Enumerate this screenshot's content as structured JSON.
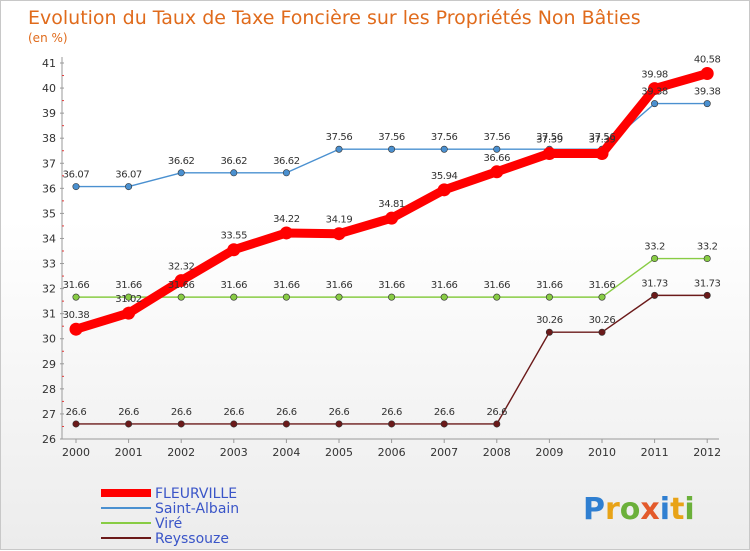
{
  "chart_data": {
    "type": "line",
    "title": "Evolution du Taux de Taxe Foncière sur les Propriétés Non Bâties",
    "subtitle": "(en %)",
    "x": [
      "2000",
      "2001",
      "2002",
      "2003",
      "2004",
      "2005",
      "2006",
      "2007",
      "2008",
      "2009",
      "2010",
      "2011",
      "2012"
    ],
    "ylim": [
      26,
      41
    ],
    "yticks": [
      26,
      27,
      28,
      29,
      30,
      31,
      32,
      33,
      34,
      35,
      36,
      37,
      38,
      39,
      40,
      41
    ],
    "grid": false,
    "legend_position": "bottom-left",
    "series": [
      {
        "name": "FLEURVILLE",
        "color": "#ff0000",
        "values": [
          30.38,
          31.02,
          32.32,
          33.55,
          34.22,
          34.19,
          34.81,
          35.94,
          36.66,
          37.39,
          37.39,
          39.98,
          40.58
        ],
        "labels": [
          "30.38",
          "31.02",
          "32.32",
          "33.55",
          "34.22",
          "34.19",
          "34.81",
          "35.94",
          "36.66",
          "37.39",
          "37.39",
          "39.98",
          "40.58"
        ]
      },
      {
        "name": "Saint-Albain",
        "color": "#4a90d0",
        "values": [
          36.07,
          36.07,
          36.62,
          36.62,
          36.62,
          37.56,
          37.56,
          37.56,
          37.56,
          37.56,
          37.56,
          39.38,
          39.38
        ],
        "labels": [
          "36.07",
          "36.07",
          "36.62",
          "36.62",
          "36.62",
          "37.56",
          "37.56",
          "37.56",
          "37.56",
          "37.56",
          "37.56",
          "39.38",
          "39.38"
        ]
      },
      {
        "name": "Viré",
        "color": "#88cc44",
        "values": [
          31.66,
          31.66,
          31.66,
          31.66,
          31.66,
          31.66,
          31.66,
          31.66,
          31.66,
          31.66,
          31.66,
          33.2,
          33.2
        ],
        "labels": [
          "31.66",
          "31.66",
          "31.66",
          "31.66",
          "31.66",
          "31.66",
          "31.66",
          "31.66",
          "31.66",
          "31.66",
          "31.66",
          "33.2",
          "33.2"
        ]
      },
      {
        "name": "Reyssouze",
        "color": "#6b1a1a",
        "values": [
          26.6,
          26.6,
          26.6,
          26.6,
          26.6,
          26.6,
          26.6,
          26.6,
          26.6,
          30.26,
          30.26,
          31.73,
          31.73
        ],
        "labels": [
          "26.6",
          "26.6",
          "26.6",
          "26.6",
          "26.6",
          "26.6",
          "26.6",
          "26.6",
          "26.6",
          "30.26",
          "30.26",
          "31.73",
          "31.73"
        ]
      }
    ]
  },
  "logo": {
    "text": "Proxiti"
  }
}
